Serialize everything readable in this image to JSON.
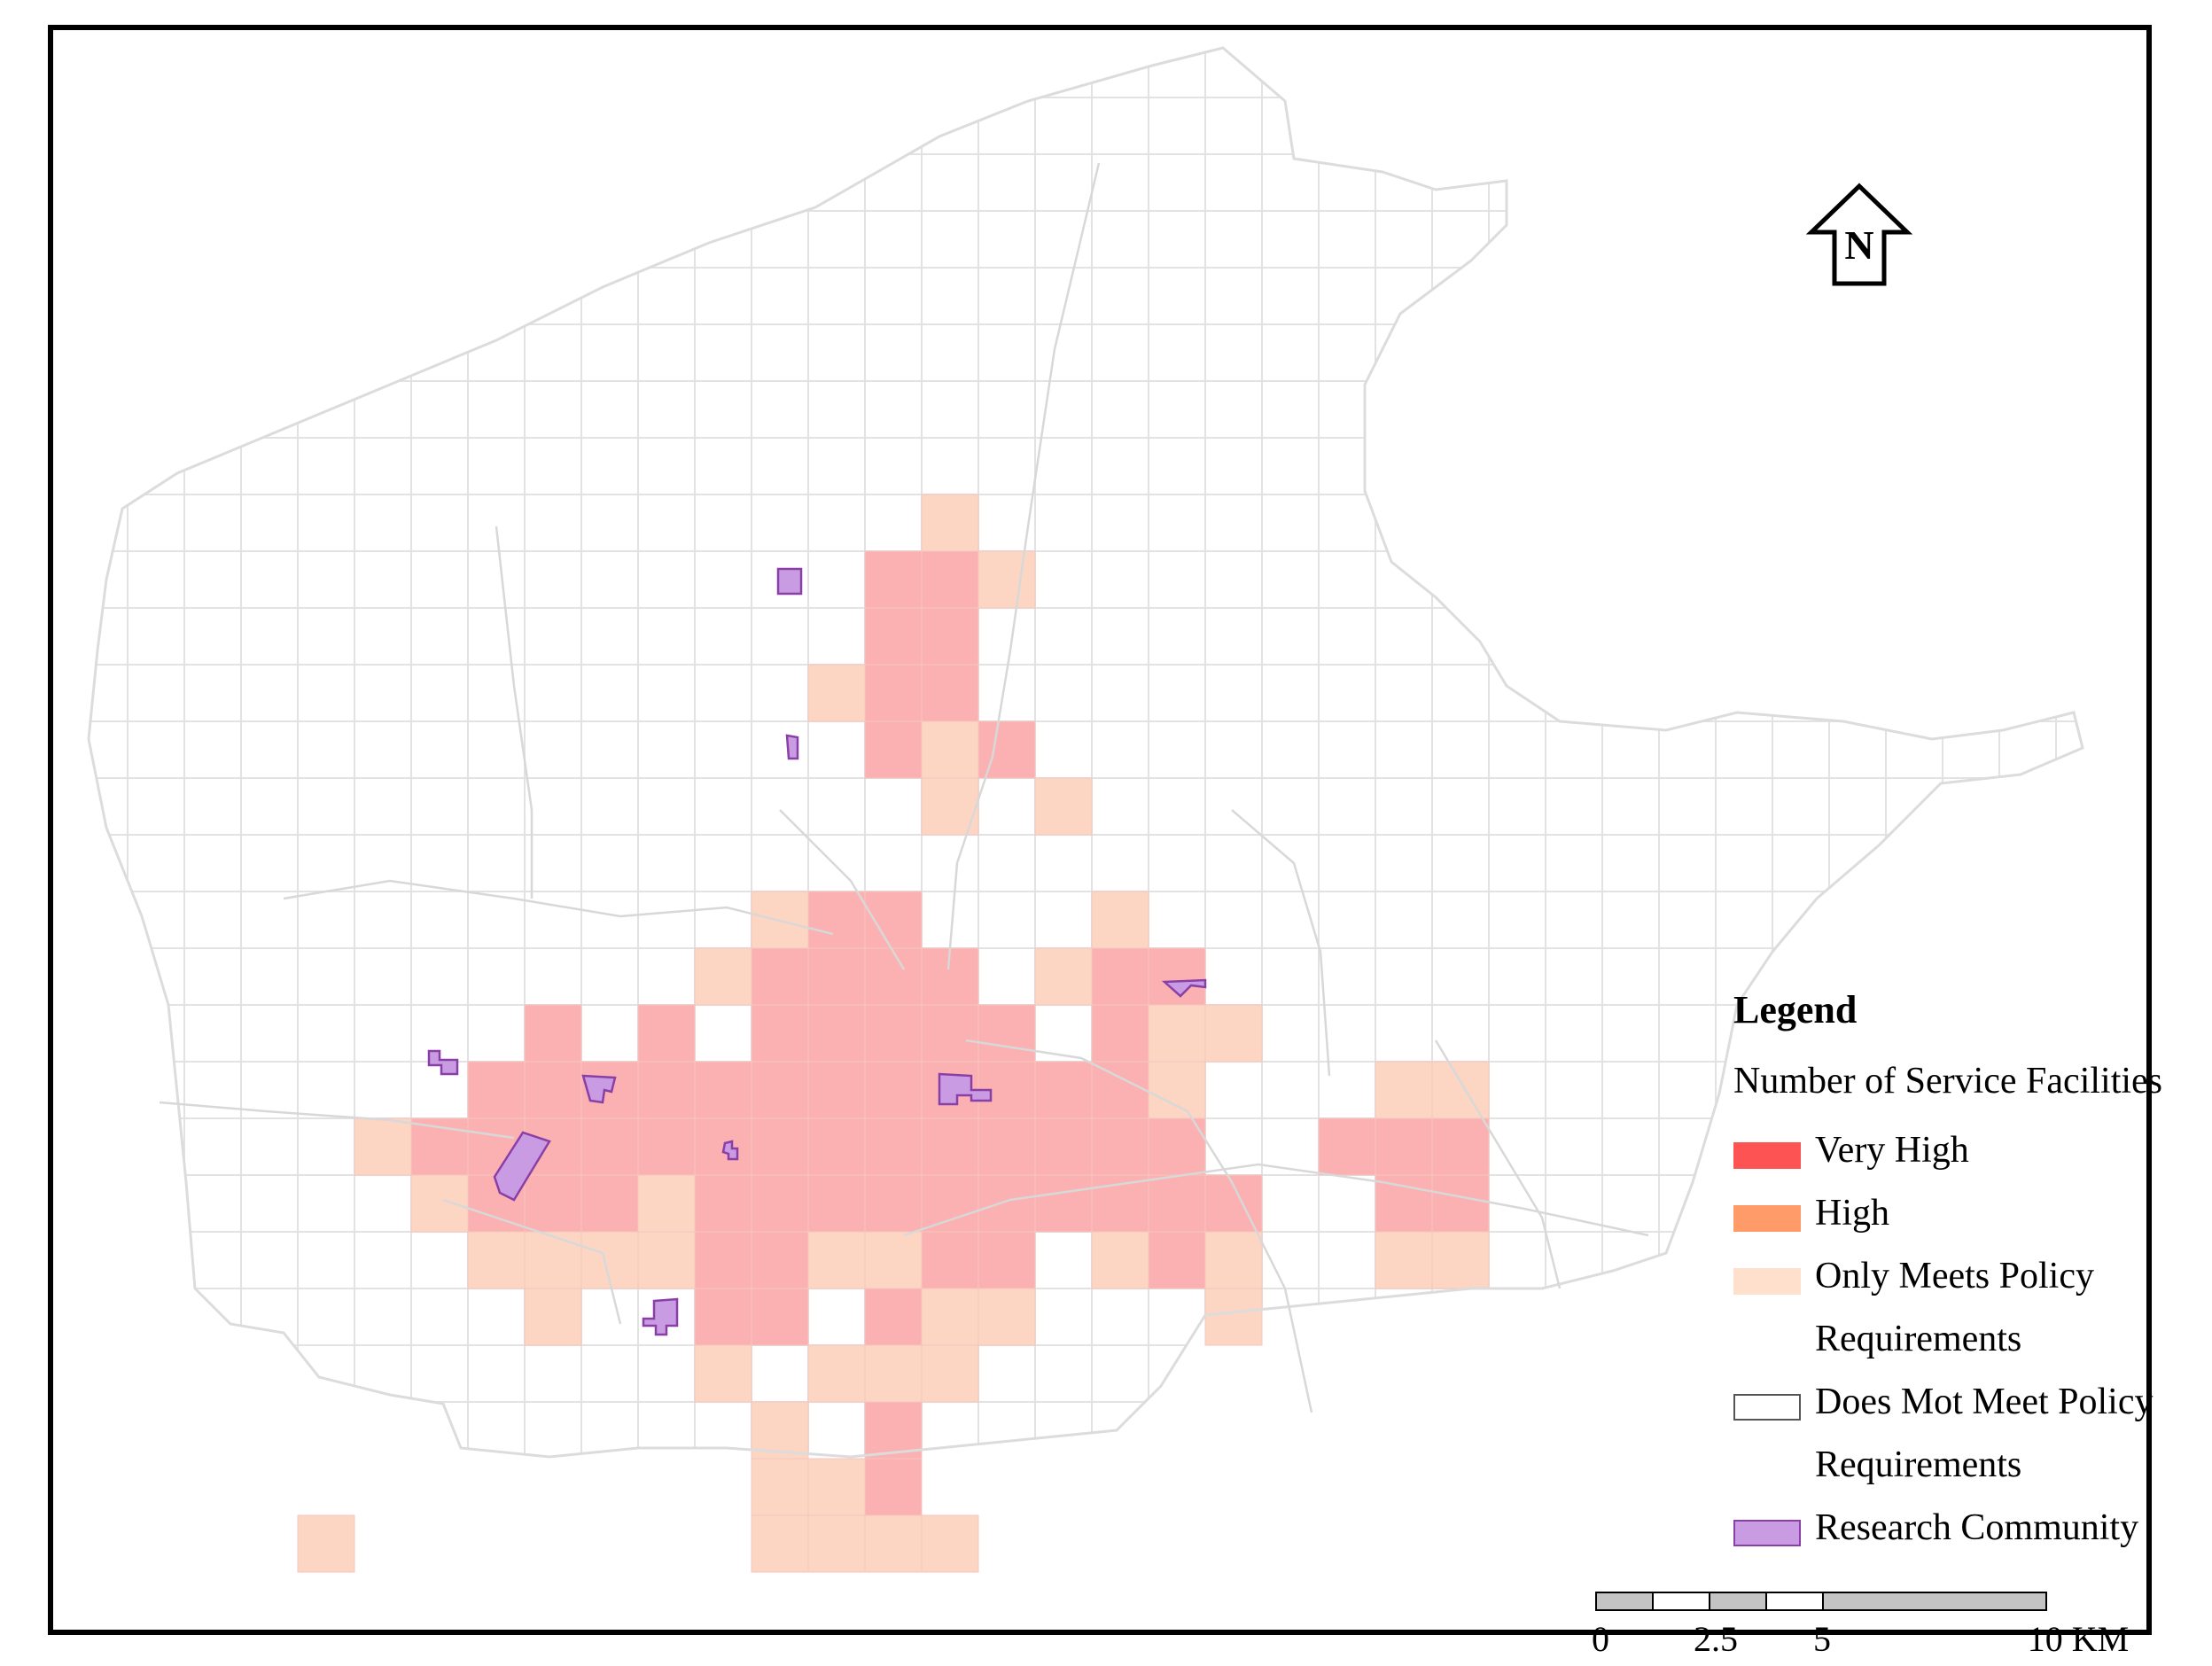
{
  "colors": {
    "very_high": "#fe5353",
    "high": "#fe9b68",
    "only_meets": "#ffe0cc",
    "does_not_meet": "#ffffff",
    "research_community": "#c89be2",
    "research_border": "#8a3ea8",
    "grid_line": "#e2e2e2",
    "area_fill": "#fbb1b1",
    "light_fill": "#fdd5c3"
  },
  "north_arrow": {
    "label": "N",
    "icon": "north-arrow-icon"
  },
  "legend": {
    "title": "Legend",
    "subtitle": "Number of Service Facilities",
    "items": [
      {
        "key": "very_high",
        "lines": [
          "Very High"
        ]
      },
      {
        "key": "high",
        "lines": [
          "High"
        ]
      },
      {
        "key": "only_meets",
        "lines": [
          "Only Meets Policy",
          "Requirements"
        ]
      },
      {
        "key": "does_not_meet",
        "lines": [
          "Does Mot Meet Policy",
          "Requirements"
        ]
      },
      {
        "key": "research_community",
        "lines": [
          "Research Community"
        ]
      }
    ]
  },
  "scale_bar": {
    "labels": [
      "0",
      "2.5",
      "5",
      "10 KM"
    ],
    "unit": "KM",
    "ticks_km": [
      0,
      2.5,
      5,
      10
    ]
  }
}
